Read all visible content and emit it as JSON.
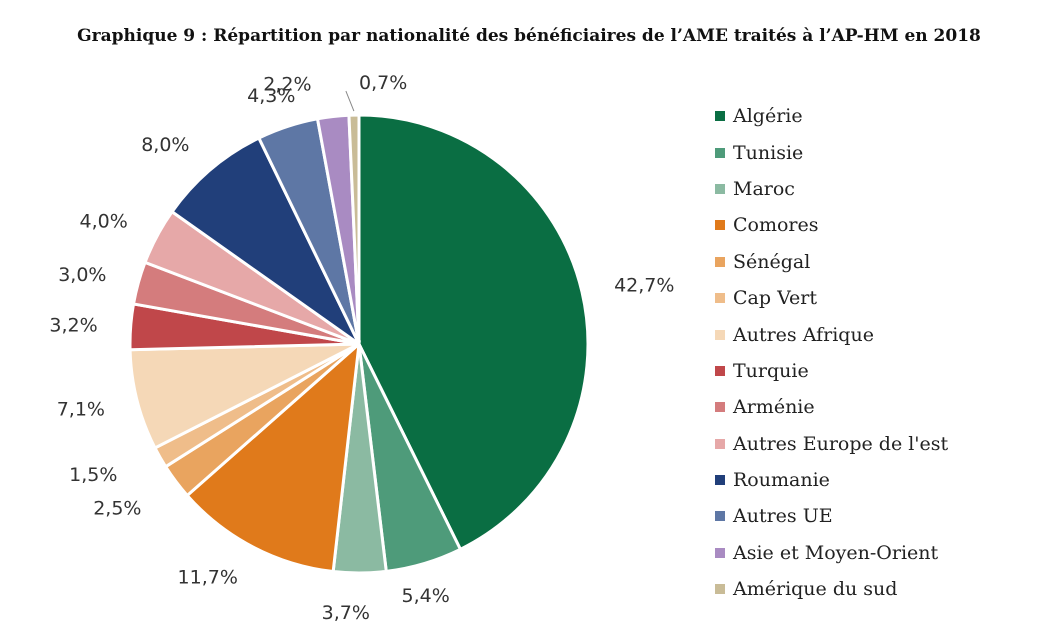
{
  "title": "Graphique 9 : Répartition par nationalité des bénéficiaires de l’AME traités à l’AP-HM en 2018",
  "chart_data": {
    "type": "pie",
    "title": "Graphique 9 : Répartition par nationalité des bénéficiaires de l’AME traités à l’AP-HM en 2018",
    "legend_position": "right",
    "slices": [
      {
        "label": "Algérie",
        "value": 42.7,
        "display": "42,7%",
        "color": "#0a6e43"
      },
      {
        "label": "Tunisie",
        "value": 5.4,
        "display": "5,4%",
        "color": "#4e9b7a"
      },
      {
        "label": "Maroc",
        "value": 3.7,
        "display": "3,7%",
        "color": "#8bbaa2"
      },
      {
        "label": "Comores",
        "value": 11.7,
        "display": "11,7%",
        "color": "#e07a1b"
      },
      {
        "label": "Sénégal",
        "value": 2.5,
        "display": "2,5%",
        "color": "#e9a45f"
      },
      {
        "label": "Cap Vert",
        "value": 1.5,
        "display": "1,5%",
        "color": "#efbd8a"
      },
      {
        "label": "Autres Afrique",
        "value": 7.1,
        "display": "7,1%",
        "color": "#f5d8b7"
      },
      {
        "label": "Turquie",
        "value": 3.2,
        "display": "3,2%",
        "color": "#c0474a"
      },
      {
        "label": "Arménie",
        "value": 3.0,
        "display": "3,0%",
        "color": "#d47c7d"
      },
      {
        "label": "Autres Europe de l'est",
        "value": 4.0,
        "display": "4,0%",
        "color": "#e6a8a8"
      },
      {
        "label": "Roumanie",
        "value": 8.0,
        "display": "8,0%",
        "color": "#213f7a"
      },
      {
        "label": "Autres UE",
        "value": 4.3,
        "display": "4,3%",
        "color": "#5e77a5"
      },
      {
        "label": "Asie et Moyen-Orient",
        "value": 2.2,
        "display": "2,2%",
        "color": "#a98bc2"
      },
      {
        "label": "Amérique du sud",
        "value": 0.7,
        "display": "0,7%",
        "color": "#c9bc97"
      }
    ]
  }
}
